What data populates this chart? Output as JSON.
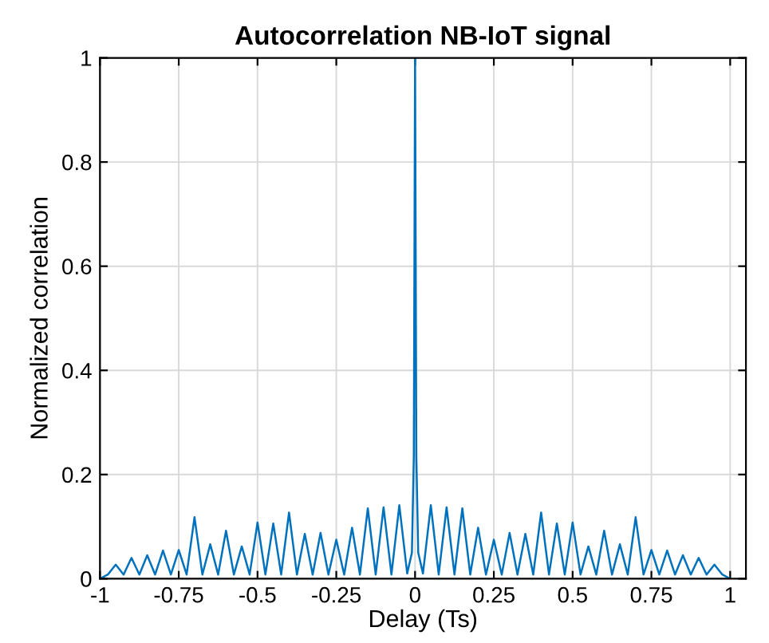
{
  "chart_data": {
    "type": "line",
    "title": "Autocorrelation NB-IoT signal",
    "xlabel": "Delay (Ts)",
    "ylabel": "Normalized correlation",
    "series": [
      {
        "color": "#0072bd",
        "x": [
          -1,
          -0.975,
          -0.95,
          -0.925,
          -0.9,
          -0.875,
          -0.85,
          -0.825,
          -0.8,
          -0.775,
          -0.75,
          -0.725,
          -0.7,
          -0.675,
          -0.65,
          -0.625,
          -0.6,
          -0.575,
          -0.55,
          -0.525,
          -0.5,
          -0.475,
          -0.45,
          -0.425,
          -0.4,
          -0.375,
          -0.35,
          -0.325,
          -0.3,
          -0.275,
          -0.25,
          -0.225,
          -0.2,
          -0.175,
          -0.15,
          -0.125,
          -0.1,
          -0.075,
          -0.05,
          -0.025,
          -0.01,
          -0.004,
          0,
          0.004,
          0.01,
          0.025,
          0.05,
          0.075,
          0.1,
          0.125,
          0.15,
          0.175,
          0.2,
          0.225,
          0.25,
          0.275,
          0.3,
          0.325,
          0.35,
          0.375,
          0.4,
          0.425,
          0.45,
          0.475,
          0.5,
          0.525,
          0.55,
          0.575,
          0.6,
          0.625,
          0.65,
          0.675,
          0.7,
          0.725,
          0.75,
          0.775,
          0.8,
          0.825,
          0.85,
          0.875,
          0.9,
          0.925,
          0.95,
          0.975,
          1
        ],
        "values": [
          0,
          0.008,
          0.027,
          0.008,
          0.04,
          0.008,
          0.045,
          0.008,
          0.054,
          0.008,
          0.055,
          0.008,
          0.118,
          0.008,
          0.066,
          0.008,
          0.092,
          0.008,
          0.062,
          0.008,
          0.108,
          0.008,
          0.106,
          0.008,
          0.127,
          0.008,
          0.086,
          0.008,
          0.088,
          0.008,
          0.075,
          0.008,
          0.098,
          0.008,
          0.135,
          0.008,
          0.137,
          0.008,
          0.141,
          0.01,
          0.05,
          0.235,
          1,
          0.235,
          0.05,
          0.01,
          0.141,
          0.008,
          0.137,
          0.008,
          0.135,
          0.008,
          0.098,
          0.008,
          0.075,
          0.008,
          0.088,
          0.008,
          0.086,
          0.008,
          0.127,
          0.008,
          0.106,
          0.008,
          0.108,
          0.008,
          0.062,
          0.008,
          0.092,
          0.008,
          0.066,
          0.008,
          0.118,
          0.008,
          0.055,
          0.008,
          0.054,
          0.008,
          0.045,
          0.008,
          0.04,
          0.008,
          0.027,
          0.008,
          0
        ]
      }
    ],
    "xlim": [
      -1,
      1.05
    ],
    "ylim": [
      0,
      1
    ],
    "xticks": [
      -1,
      -0.75,
      -0.5,
      -0.25,
      0,
      0.25,
      0.5,
      0.75,
      1
    ],
    "yticks": [
      0,
      0.2,
      0.4,
      0.6,
      0.8,
      1
    ],
    "grid": true,
    "marker": "none",
    "line_style": "solid"
  }
}
